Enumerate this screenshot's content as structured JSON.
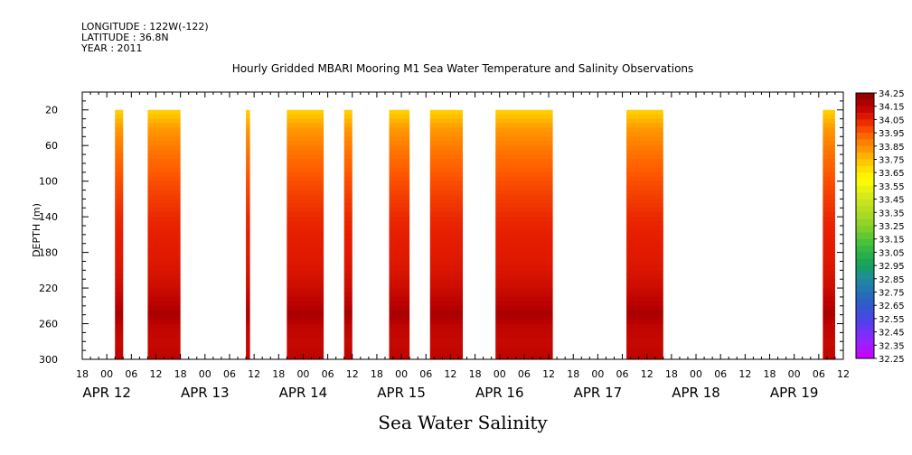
{
  "header": {
    "longitude": "LONGITUDE : 122W(-122)",
    "latitude": "LATITUDE : 36.8N",
    "year": "YEAR : 2011"
  },
  "chart_data": {
    "type": "heatmap",
    "title": "Hourly Gridded MBARI Mooring M1 Sea Water Temperature and Salinity Observations",
    "xlabel_bottom": "Sea Water Salinity",
    "ylabel": "DEPTH (m)",
    "y_reversed": true,
    "ylim": [
      300,
      0
    ],
    "y_ticks": [
      20,
      60,
      100,
      140,
      180,
      220,
      260,
      300
    ],
    "x_hour_ticks": [
      "18",
      "00",
      "06",
      "12",
      "18",
      "00",
      "06",
      "12",
      "18",
      "00",
      "06",
      "12",
      "18",
      "00",
      "06",
      "12",
      "18",
      "00",
      "06",
      "12",
      "18",
      "00",
      "06",
      "12",
      "18",
      "00",
      "06",
      "12",
      "18",
      "00",
      "06",
      "12"
    ],
    "x_hour_start": -6,
    "x_day_labels": [
      {
        "label": "APR 12",
        "hour": 0
      },
      {
        "label": "APR 13",
        "hour": 24
      },
      {
        "label": "APR 14",
        "hour": 48
      },
      {
        "label": "APR 15",
        "hour": 72
      },
      {
        "label": "APR 16",
        "hour": 96
      },
      {
        "label": "APR 17",
        "hour": 120
      },
      {
        "label": "APR 18",
        "hour": 144
      },
      {
        "label": "APR 19",
        "hour": 168
      }
    ],
    "x_range_hours": [
      -6,
      180
    ],
    "data_segments_hours": [
      [
        2,
        4
      ],
      [
        10,
        18
      ],
      [
        34,
        35
      ],
      [
        44,
        53
      ],
      [
        58,
        60
      ],
      [
        69,
        74
      ],
      [
        79,
        87
      ],
      [
        95,
        109
      ],
      [
        127,
        136
      ],
      [
        175,
        178
      ]
    ],
    "depth_profile": {
      "depths": [
        20,
        40,
        60,
        80,
        100,
        120,
        140,
        160,
        180,
        200,
        220,
        240,
        250,
        260,
        280,
        300
      ],
      "salinity": [
        33.7,
        33.82,
        33.88,
        33.93,
        33.97,
        34.0,
        34.03,
        34.05,
        34.06,
        34.08,
        34.11,
        34.15,
        34.19,
        34.14,
        34.12,
        34.14
      ]
    },
    "colorbar": {
      "min": 32.25,
      "max": 34.25,
      "step": 0.05,
      "labels": [
        "34.25",
        "34.15",
        "34.05",
        "33.95",
        "33.85",
        "33.75",
        "33.65",
        "33.55",
        "33.45",
        "33.35",
        "33.25",
        "33.15",
        "33.05",
        "32.95",
        "32.85",
        "32.75",
        "32.65",
        "32.55",
        "32.45",
        "32.35",
        "32.25"
      ]
    }
  }
}
